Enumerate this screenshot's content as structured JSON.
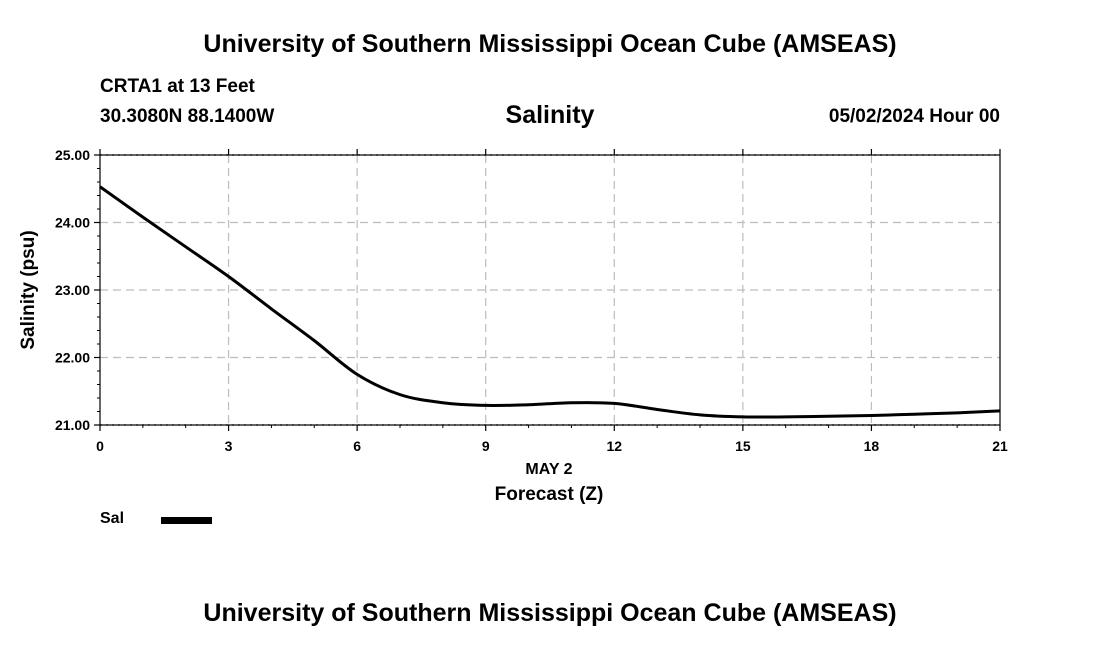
{
  "header": {
    "title": "University of Southern Mississippi Ocean Cube (AMSEAS)",
    "station": "CRTA1 at 13 Feet",
    "coords": "30.3080N  88.1400W",
    "variable": "Salinity",
    "datetime": "05/02/2024 Hour 00"
  },
  "footer": {
    "title": "University of Southern Mississippi Ocean Cube (AMSEAS)"
  },
  "legend": {
    "label": "Sal",
    "color": "#000000"
  },
  "chart_data": {
    "type": "line",
    "title": "Salinity",
    "xlabel": "Forecast (Z)",
    "xlabel_date": "MAY 2",
    "ylabel": "Salinity (psu)",
    "xlim": [
      0,
      21
    ],
    "ylim": [
      21,
      25
    ],
    "x_ticks": [
      0,
      3,
      6,
      9,
      12,
      15,
      18,
      21
    ],
    "x_tick_labels": [
      "0",
      "3",
      "6",
      "9",
      "12",
      "15",
      "18",
      "21"
    ],
    "y_ticks": [
      21,
      22,
      23,
      24,
      25
    ],
    "y_tick_labels": [
      "21.00",
      "22.00",
      "23.00",
      "24.00",
      "25.00"
    ],
    "grid": true,
    "series": [
      {
        "name": "Sal",
        "x": [
          0,
          1,
          2,
          3,
          4,
          5,
          6,
          7,
          8,
          9,
          10,
          11,
          12,
          13,
          14,
          15,
          16,
          17,
          18,
          19,
          20,
          21
        ],
        "values": [
          24.53,
          24.08,
          23.64,
          23.2,
          22.72,
          22.25,
          21.75,
          21.45,
          21.33,
          21.29,
          21.3,
          21.33,
          21.32,
          21.23,
          21.15,
          21.12,
          21.12,
          21.13,
          21.14,
          21.16,
          21.18,
          21.21
        ]
      }
    ]
  }
}
